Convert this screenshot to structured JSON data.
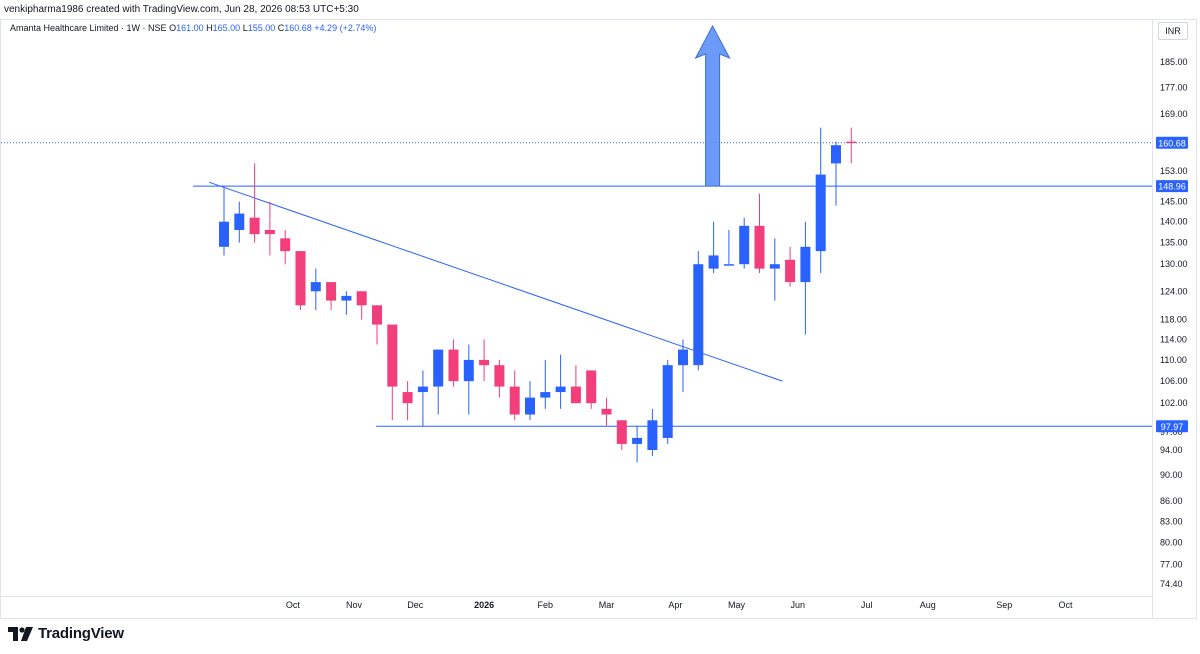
{
  "caption": "venkipharma1986 created with TradingView.com, Jun 28, 2026 08:53 UTC+5:30",
  "legend": {
    "symbol": "Amanta Healthcare Limited · 1W · NSE",
    "o_label": "O",
    "o": "161.00",
    "h_label": "H",
    "h": "165.00",
    "l_label": "L",
    "l": "155.00",
    "c_label": "C",
    "c": "160.68",
    "change": "+4.29 (+2.74%)"
  },
  "currency_button": "INR",
  "footer": {
    "brand": "TradingView",
    "logo_icon": "tradingview-logo-icon"
  },
  "colors": {
    "up": "#2962ff",
    "down": "#f23e7a",
    "line": "#2962ff",
    "arrow": "#5b8ff7"
  },
  "chart_data": {
    "type": "candlestick",
    "scale": "log",
    "ylim": [
      72,
      210
    ],
    "grid": false,
    "y_ticks": [
      "185.00",
      "177.00",
      "169.00",
      "153.00",
      "145.00",
      "140.00",
      "135.00",
      "130.00",
      "124.00",
      "118.00",
      "114.00",
      "110.00",
      "106.00",
      "102.00",
      "97.00",
      "94.00",
      "90.00",
      "86.00",
      "83.00",
      "80.00",
      "77.00",
      "74.40"
    ],
    "x_ticks": [
      {
        "label": "Oct",
        "week": 4.5
      },
      {
        "label": "Nov",
        "week": 8.5
      },
      {
        "label": "Dec",
        "week": 12.5
      },
      {
        "label": "2026",
        "week": 17
      },
      {
        "label": "Feb",
        "week": 21
      },
      {
        "label": "Mar",
        "week": 25
      },
      {
        "label": "Apr",
        "week": 29.5
      },
      {
        "label": "May",
        "week": 33.5
      },
      {
        "label": "Jun",
        "week": 37.5
      },
      {
        "label": "Jul",
        "week": 42
      },
      {
        "label": "Aug",
        "week": 46
      },
      {
        "label": "Sep",
        "week": 51
      },
      {
        "label": "Oct",
        "week": 55
      }
    ],
    "candles": [
      {
        "o": 134,
        "h": 149,
        "l": 132,
        "c": 140
      },
      {
        "o": 138,
        "h": 145,
        "l": 135,
        "c": 142
      },
      {
        "o": 141,
        "h": 155,
        "l": 135,
        "c": 137
      },
      {
        "o": 138,
        "h": 145,
        "l": 132,
        "c": 137
      },
      {
        "o": 136,
        "h": 138,
        "l": 130,
        "c": 133
      },
      {
        "o": 133,
        "h": 133,
        "l": 120,
        "c": 121
      },
      {
        "o": 124,
        "h": 129,
        "l": 120,
        "c": 126
      },
      {
        "o": 126,
        "h": 126,
        "l": 120,
        "c": 122
      },
      {
        "o": 122,
        "h": 124,
        "l": 119,
        "c": 123
      },
      {
        "o": 124,
        "h": 124,
        "l": 118,
        "c": 121
      },
      {
        "o": 121,
        "h": 121,
        "l": 113,
        "c": 117
      },
      {
        "o": 117,
        "h": 117,
        "l": 99,
        "c": 105
      },
      {
        "o": 104,
        "h": 106,
        "l": 99,
        "c": 102
      },
      {
        "o": 104,
        "h": 108,
        "l": 98,
        "c": 105
      },
      {
        "o": 105,
        "h": 112,
        "l": 100,
        "c": 112
      },
      {
        "o": 112,
        "h": 114,
        "l": 105,
        "c": 106
      },
      {
        "o": 106,
        "h": 113,
        "l": 100,
        "c": 110
      },
      {
        "o": 110,
        "h": 114,
        "l": 106,
        "c": 109
      },
      {
        "o": 109,
        "h": 110,
        "l": 103,
        "c": 105
      },
      {
        "o": 105,
        "h": 108,
        "l": 99,
        "c": 100
      },
      {
        "o": 100,
        "h": 106,
        "l": 99,
        "c": 103
      },
      {
        "o": 103,
        "h": 110,
        "l": 101,
        "c": 104
      },
      {
        "o": 104,
        "h": 111,
        "l": 101,
        "c": 105
      },
      {
        "o": 105,
        "h": 109,
        "l": 102,
        "c": 102
      },
      {
        "o": 108,
        "h": 108,
        "l": 101,
        "c": 102
      },
      {
        "o": 101,
        "h": 103,
        "l": 98,
        "c": 100
      },
      {
        "o": 99,
        "h": 99,
        "l": 94,
        "c": 95
      },
      {
        "o": 95,
        "h": 98,
        "l": 92,
        "c": 96
      },
      {
        "o": 94,
        "h": 101,
        "l": 93,
        "c": 99
      },
      {
        "o": 96,
        "h": 110,
        "l": 95,
        "c": 109
      },
      {
        "o": 109,
        "h": 114,
        "l": 104,
        "c": 112
      },
      {
        "o": 109,
        "h": 133,
        "l": 108,
        "c": 130
      },
      {
        "o": 129,
        "h": 140,
        "l": 128,
        "c": 132
      },
      {
        "o": 130,
        "h": 138,
        "l": 130,
        "c": 130
      },
      {
        "o": 130,
        "h": 141,
        "l": 129,
        "c": 139
      },
      {
        "o": 139,
        "h": 147,
        "l": 128,
        "c": 129
      },
      {
        "o": 129,
        "h": 136,
        "l": 122,
        "c": 130
      },
      {
        "o": 131,
        "h": 134,
        "l": 125,
        "c": 126
      },
      {
        "o": 126,
        "h": 140,
        "l": 115,
        "c": 134
      },
      {
        "o": 133,
        "h": 165,
        "l": 128,
        "c": 152
      },
      {
        "o": 155,
        "h": 161,
        "l": 144,
        "c": 160
      },
      {
        "o": 161,
        "h": 165,
        "l": 155,
        "c": 160.68
      }
    ],
    "horizontal_lines": [
      {
        "value": 148.96,
        "label": "148.96",
        "from_week": 0
      },
      {
        "value": 97.97,
        "label": "97.97",
        "from_week": 12
      }
    ],
    "last_price": {
      "value": 160.68,
      "label": "160.68"
    },
    "trend_line": {
      "from": {
        "week": 0,
        "value": 150
      },
      "to": {
        "week": 36.5,
        "value": 106
      }
    },
    "annotation": {
      "type": "up-arrow",
      "week": 32,
      "from_value": 149,
      "to_value": 197
    }
  }
}
